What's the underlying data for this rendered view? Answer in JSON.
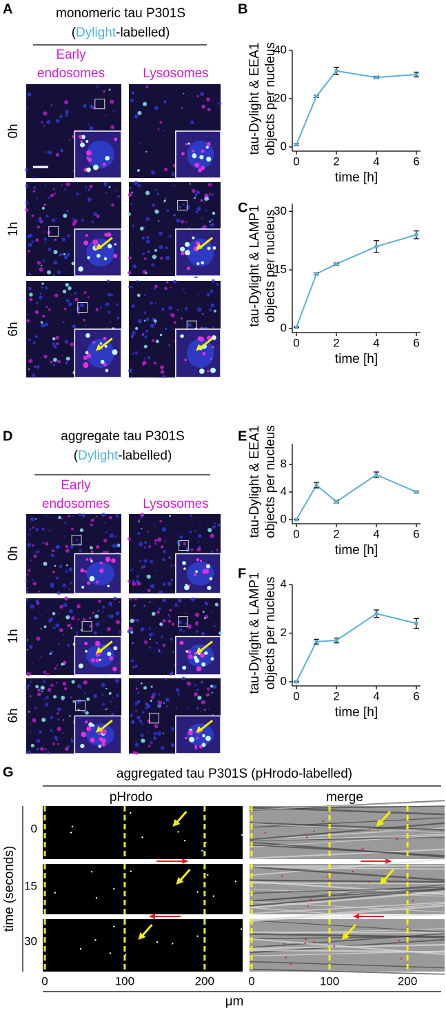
{
  "panel_a": {
    "letter": "A",
    "title": "monomeric tau P301S",
    "subtitle": [
      "(",
      "Dylight",
      "-labelled)"
    ],
    "columns": [
      [
        "Early",
        "endosomes"
      ],
      "Lysosomes"
    ],
    "rows": [
      "0h",
      "1h",
      "6h"
    ]
  },
  "panel_d": {
    "letter": "D",
    "title": "aggregate tau P301S",
    "subtitle": [
      "(",
      "Dylight",
      "-labelled)"
    ],
    "columns": [
      [
        "Early",
        "endosomes"
      ],
      "Lysosomes"
    ],
    "rows": [
      "0h",
      "1h",
      "6h"
    ]
  },
  "chart_data": [
    {
      "type": "line",
      "panel": "B",
      "y_label": [
        "tau-Dylight & EEA1",
        "objects per nucleus"
      ],
      "x_label": "time [h]",
      "x": [
        0,
        1,
        2,
        4,
        6
      ],
      "series": [
        {
          "color": "#5bafd3",
          "values": [
            1,
            21,
            31.5,
            28.8,
            30
          ],
          "errors": [
            0.3,
            0.5,
            1.5,
            0.5,
            1
          ]
        }
      ],
      "xlim": [
        0,
        6
      ],
      "xticks": [
        0,
        2,
        4,
        6
      ],
      "ylim": [
        0,
        40
      ],
      "yticks": [
        0,
        20,
        40
      ]
    },
    {
      "type": "line",
      "panel": "C",
      "y_label": [
        "tau-Dylight & LAMP1",
        "objects per nucleus"
      ],
      "x_label": "time [h]",
      "x": [
        0,
        1,
        2,
        4,
        6
      ],
      "series": [
        {
          "color": "#5bafd3",
          "values": [
            0.3,
            14,
            16.5,
            21,
            24
          ],
          "errors": [
            0.1,
            0.3,
            0.3,
            1.5,
            1
          ]
        }
      ],
      "xlim": [
        0,
        6
      ],
      "xticks": [
        0,
        2,
        4,
        6
      ],
      "ylim": [
        0,
        32
      ],
      "yticks": [
        0,
        15,
        30
      ]
    },
    {
      "type": "line",
      "panel": "E",
      "y_label": [
        "tau-Dylight & EEA1",
        "objects per nucleus"
      ],
      "x_label": "time [h]",
      "x": [
        0,
        1,
        2,
        4,
        6
      ],
      "series": [
        {
          "color": "#5bafd3",
          "values": [
            0,
            5,
            2.6,
            6.5,
            4
          ],
          "errors": [
            0.05,
            0.4,
            0.2,
            0.4,
            0.15
          ]
        }
      ],
      "xlim": [
        0,
        6
      ],
      "xticks": [
        0,
        2,
        4,
        6
      ],
      "ylim": [
        0,
        11
      ],
      "yticks": [
        0,
        4,
        8
      ]
    },
    {
      "type": "line",
      "panel": "F",
      "y_label": [
        "tau-Dylight & LAMP1",
        "objects per nucleus"
      ],
      "x_label": "time [h]",
      "x": [
        0,
        1,
        2,
        4,
        6
      ],
      "series": [
        {
          "color": "#5bafd3",
          "values": [
            0,
            1.65,
            1.7,
            2.8,
            2.4
          ],
          "errors": [
            0.02,
            0.1,
            0.1,
            0.15,
            0.2
          ]
        }
      ],
      "xlim": [
        0,
        6
      ],
      "xticks": [
        0,
        2,
        4,
        6
      ],
      "ylim": [
        0,
        4
      ],
      "yticks": [
        0,
        2,
        4
      ]
    }
  ],
  "panel_g": {
    "letter": "G",
    "title": "aggregated tau P301S (pHrodo-labelled)",
    "columns": [
      "pHrodo",
      "merge"
    ],
    "y_label": "time (seconds)",
    "times": [
      0,
      15,
      30
    ],
    "xlim": [
      0,
      245
    ],
    "xticks": [
      0,
      100,
      200
    ],
    "x_unit": "μm"
  }
}
